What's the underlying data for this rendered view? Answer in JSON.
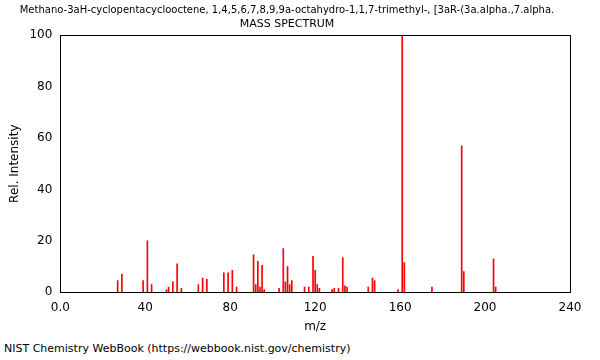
{
  "chart_data": {
    "type": "bar",
    "title": "Methano-3aH-cyclopentacyclooctene, 1,4,5,6,7,8,9,9a-octahydro-1,1,7-trimethyl-, [3aR-(3a.alpha.,7.alpha.",
    "subtitle": "MASS SPECTRUM",
    "x_label": "m/z",
    "y_label": "Rel. Intensity",
    "footer": "NIST Chemistry WebBook (https://webbook.nist.gov/chemistry)",
    "x": [
      27,
      29,
      39,
      41,
      43,
      50,
      51,
      53,
      55,
      57,
      65,
      67,
      69,
      77,
      79,
      81,
      83,
      91,
      92,
      93,
      94,
      95,
      96,
      103,
      105,
      106,
      107,
      108,
      109,
      115,
      117,
      119,
      120,
      121,
      122,
      128,
      129,
      131,
      133,
      134,
      135,
      145,
      147,
      148,
      159,
      161,
      162,
      175,
      189,
      190,
      204,
      205
    ],
    "values": [
      4.5,
      7,
      4.5,
      20,
      3,
      1,
      2,
      4,
      11,
      1.5,
      3,
      5.5,
      5,
      7.5,
      7.5,
      8.5,
      2,
      14.5,
      3,
      12,
      2,
      10.5,
      1,
      1.5,
      17,
      4,
      10,
      3,
      4.5,
      2,
      2,
      14,
      8.5,
      3,
      1.5,
      1,
      1.5,
      1.5,
      13.5,
      2.5,
      2,
      2,
      5.5,
      4.5,
      1,
      100,
      11.5,
      2,
      57,
      8,
      13,
      2
    ],
    "color": "#ff0000",
    "xlim": [
      0,
      240
    ],
    "xticks": [
      {
        "value": 0,
        "label": "0.0"
      },
      40,
      80,
      120,
      160,
      200,
      240
    ],
    "ylim": [
      0,
      100
    ],
    "yticks": [
      0,
      20,
      40,
      60,
      80,
      100
    ],
    "grid": false
  }
}
